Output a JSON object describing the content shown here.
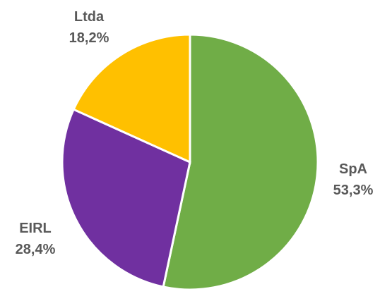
{
  "chart_data": {
    "type": "pie",
    "slices": [
      {
        "label": "SpA",
        "value": 53.3,
        "value_label": "53,3%",
        "color": "#70AD47"
      },
      {
        "label": "EIRL",
        "value": 28.4,
        "value_label": "28,4%",
        "color": "#7030A0"
      },
      {
        "label": "Ltda",
        "value": 18.2,
        "value_label": "18,2%",
        "color": "#FFC000"
      }
    ],
    "start": "12 o'clock",
    "direction": "clockwise",
    "legend": "none"
  }
}
